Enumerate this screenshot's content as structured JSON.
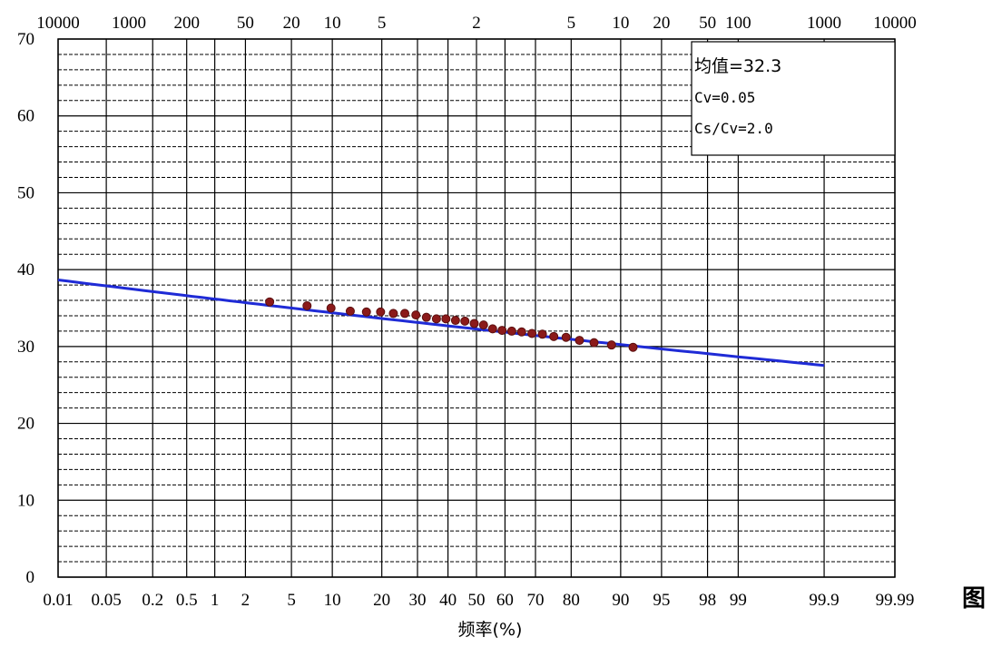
{
  "chart_data": {
    "type": "scatter",
    "title": "",
    "xlabel": "频率(%)",
    "ylabel": "",
    "ylim": [
      0,
      70
    ],
    "xscale": "normal-probability",
    "xlim": [
      0.01,
      99.99
    ],
    "x_tick_labels": [
      {
        "p": 0.01,
        "label": "0.01"
      },
      {
        "p": 0.05,
        "label": "0.05"
      },
      {
        "p": 0.2,
        "label": "0.2"
      },
      {
        "p": 0.5,
        "label": "0.5"
      },
      {
        "p": 1,
        "label": "1"
      },
      {
        "p": 2,
        "label": "2"
      },
      {
        "p": 5,
        "label": "5"
      },
      {
        "p": 10,
        "label": "10"
      },
      {
        "p": 20,
        "label": "20"
      },
      {
        "p": 30,
        "label": "30"
      },
      {
        "p": 40,
        "label": "40"
      },
      {
        "p": 50,
        "label": "50"
      },
      {
        "p": 60,
        "label": "60"
      },
      {
        "p": 70,
        "label": "70"
      },
      {
        "p": 80,
        "label": "80"
      },
      {
        "p": 90,
        "label": "90"
      },
      {
        "p": 95,
        "label": "95"
      },
      {
        "p": 98,
        "label": "98"
      },
      {
        "p": 99,
        "label": "99"
      },
      {
        "p": 99.9,
        "label": "99.9"
      },
      {
        "p": 99.99,
        "label": "99.99"
      }
    ],
    "return_period_tick_labels": [
      {
        "p": 0.01,
        "label": "10000"
      },
      {
        "p": 0.1,
        "label": "1000"
      },
      {
        "p": 0.5,
        "label": "200"
      },
      {
        "p": 2,
        "label": "50"
      },
      {
        "p": 5,
        "label": "20"
      },
      {
        "p": 10,
        "label": "10"
      },
      {
        "p": 20,
        "label": "5"
      },
      {
        "p": 50,
        "label": "2"
      },
      {
        "p": 80,
        "label": "5"
      },
      {
        "p": 90,
        "label": "10"
      },
      {
        "p": 95,
        "label": "20"
      },
      {
        "p": 98,
        "label": "50"
      },
      {
        "p": 99,
        "label": "100"
      },
      {
        "p": 99.9,
        "label": "1000"
      },
      {
        "p": 99.99,
        "label": "10000"
      }
    ],
    "vertical_gridlines_at": [
      0.01,
      0.05,
      0.2,
      0.5,
      1,
      2,
      5,
      10,
      20,
      30,
      40,
      50,
      60,
      70,
      80,
      90,
      95,
      98,
      99,
      99.9,
      99.99
    ],
    "y_ticks": [
      0,
      10,
      20,
      30,
      40,
      50,
      60,
      70
    ],
    "y_minor_step": 2,
    "grid": true,
    "series": [
      {
        "kind": "points",
        "color": "#8b1a1a",
        "points": [
          [
            3.3,
            35.8
          ],
          [
            6.6,
            35.3
          ],
          [
            9.8,
            35.0
          ],
          [
            13.1,
            34.6
          ],
          [
            16.4,
            34.5
          ],
          [
            19.7,
            34.5
          ],
          [
            23.0,
            34.3
          ],
          [
            26.2,
            34.3
          ],
          [
            29.5,
            34.1
          ],
          [
            32.8,
            33.8
          ],
          [
            36.1,
            33.6
          ],
          [
            39.3,
            33.6
          ],
          [
            42.6,
            33.4
          ],
          [
            45.9,
            33.3
          ],
          [
            49.2,
            33.0
          ],
          [
            52.5,
            32.8
          ],
          [
            55.7,
            32.3
          ],
          [
            59.0,
            32.1
          ],
          [
            62.3,
            32.0
          ],
          [
            65.6,
            31.9
          ],
          [
            68.9,
            31.7
          ],
          [
            72.1,
            31.6
          ],
          [
            75.4,
            31.3
          ],
          [
            78.7,
            31.2
          ],
          [
            82.0,
            30.8
          ],
          [
            85.2,
            30.5
          ],
          [
            88.5,
            30.2
          ],
          [
            91.8,
            29.9
          ]
        ]
      },
      {
        "kind": "line",
        "color": "#1f2bd6",
        "mean": 32.3,
        "cv": 0.05,
        "cs_over_cv": 2.0,
        "x_range": [
          0.01,
          99.9
        ]
      }
    ],
    "legend": {
      "position": "top-right",
      "lines": [
        "均值=32.3",
        "Cv=0.05",
        "Cs/Cv=2.0"
      ]
    }
  },
  "side_label": "图"
}
